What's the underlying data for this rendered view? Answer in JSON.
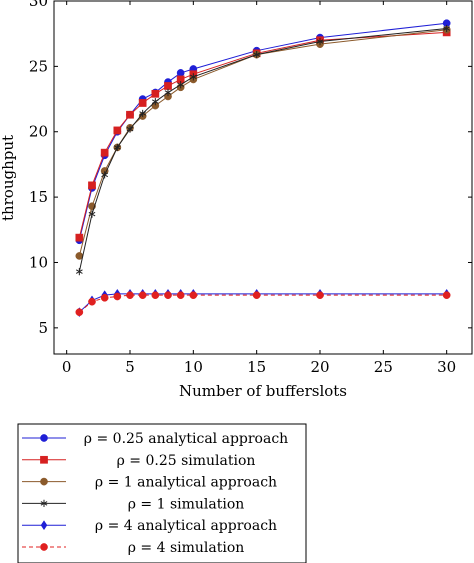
{
  "chart_data": {
    "type": "line",
    "xlabel": "Number of bufferslots",
    "ylabel": "throughput",
    "xlim": [
      -1,
      32
    ],
    "ylim": [
      3,
      30
    ],
    "xticks": [
      0,
      5,
      10,
      15,
      20,
      25,
      30
    ],
    "yticks": [
      5,
      10,
      15,
      20,
      25,
      30
    ],
    "grid": false,
    "legend_position": "bottom",
    "x": [
      1,
      2,
      3,
      4,
      5,
      6,
      7,
      8,
      9,
      10,
      15,
      20,
      30
    ],
    "series": [
      {
        "name": "ρ = 0.25 analytical approach",
        "color": "#1f1fd6",
        "marker": "circle",
        "dash": "solid",
        "values": [
          11.7,
          15.7,
          18.2,
          20.0,
          21.3,
          22.5,
          23.0,
          23.8,
          24.5,
          24.8,
          26.2,
          27.2,
          28.3
        ]
      },
      {
        "name": "ρ = 0.25 simulation",
        "color": "#d62020",
        "marker": "square",
        "dash": "solid",
        "values": [
          11.9,
          15.9,
          18.4,
          20.1,
          21.3,
          22.2,
          22.9,
          23.5,
          24.0,
          24.4,
          26.0,
          27.0,
          27.6
        ]
      },
      {
        "name": "ρ = 1 analytical approach",
        "color": "#8b5a2b",
        "marker": "circle",
        "dash": "solid",
        "values": [
          10.5,
          14.3,
          17.0,
          18.8,
          20.3,
          21.2,
          22.0,
          22.7,
          23.4,
          24.0,
          25.9,
          26.7,
          27.8
        ]
      },
      {
        "name": "ρ = 1 simulation",
        "color": "#222222",
        "marker": "star",
        "dash": "solid",
        "values": [
          9.3,
          13.7,
          16.7,
          18.8,
          20.2,
          21.4,
          22.3,
          23.0,
          23.6,
          24.2,
          25.9,
          26.9,
          27.9
        ]
      },
      {
        "name": "ρ = 4 analytical approach",
        "color": "#1f1fd6",
        "marker": "diamond",
        "dash": "solid",
        "values": [
          6.2,
          7.1,
          7.5,
          7.6,
          7.6,
          7.6,
          7.6,
          7.6,
          7.6,
          7.6,
          7.6,
          7.6,
          7.6
        ]
      },
      {
        "name": "ρ = 4 simulation",
        "color": "#e02020",
        "marker": "circle",
        "dash": "dashed",
        "values": [
          6.2,
          7.0,
          7.3,
          7.4,
          7.5,
          7.5,
          7.5,
          7.5,
          7.5,
          7.5,
          7.5,
          7.5,
          7.5
        ]
      }
    ]
  }
}
